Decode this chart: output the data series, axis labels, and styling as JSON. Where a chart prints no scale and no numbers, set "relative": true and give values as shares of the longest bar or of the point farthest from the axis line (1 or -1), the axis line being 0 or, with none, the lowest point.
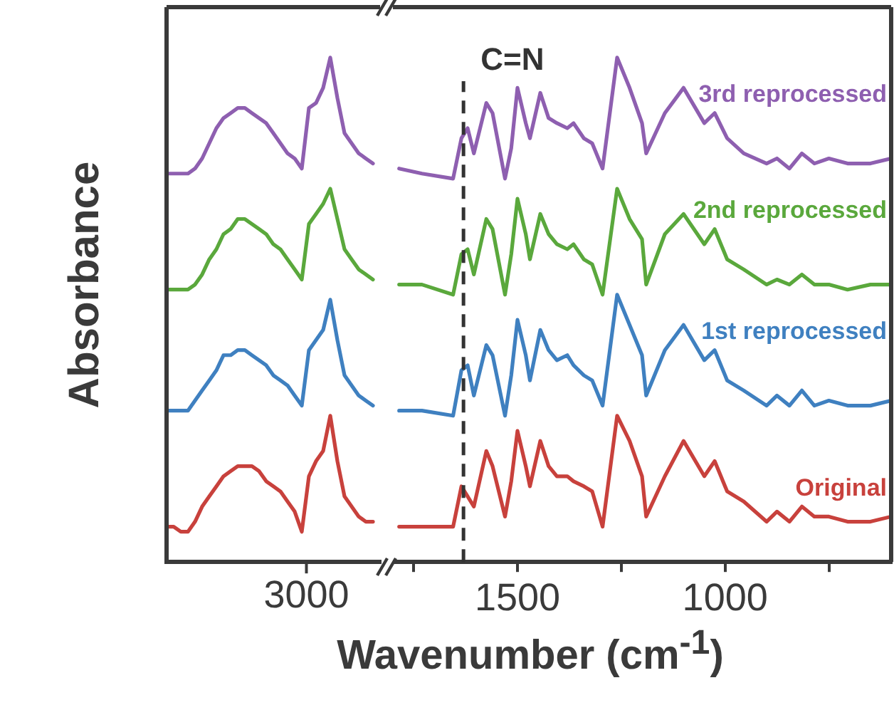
{
  "chart_data": [
    {
      "type": "line",
      "relative": true,
      "ylabel": "Absorbance",
      "xlabel": "Wavenumber (cm$^{-1}$)",
      "tick_labels": "x",
      "categories": [
        null,
        null,
        null,
        null,
        null,
        null,
        null,
        null,
        null,
        null,
        null,
        null,
        null,
        null,
        null,
        null,
        null,
        null,
        null,
        null,
        null,
        null,
        null,
        null,
        null,
        null,
        null,
        null,
        null,
        null,
        null
      ],
      "annotations": [
        "3000"
      ],
      "series": [
        {
          "color": "#8e5fb0",
          "values": [
            0.77,
            0.77,
            0.77,
            0.77,
            0.78,
            0.8,
            0.83,
            0.86,
            0.88,
            0.89,
            0.9,
            0.9,
            0.89,
            0.88,
            0.87,
            0.85,
            0.83,
            0.81,
            0.8,
            0.78,
            0.9,
            0.91,
            0.94,
            1.0,
            0.92,
            0.85,
            0.83,
            0.81,
            0.8,
            0.79,
            null
          ]
        },
        {
          "color": "#5aa83c",
          "values": [
            0.54,
            0.54,
            0.54,
            0.54,
            0.55,
            0.57,
            0.6,
            0.62,
            0.65,
            0.66,
            0.68,
            0.68,
            0.67,
            0.66,
            0.65,
            0.63,
            0.62,
            0.6,
            0.58,
            0.56,
            0.67,
            0.69,
            0.71,
            0.74,
            0.68,
            0.62,
            0.6,
            0.58,
            0.57,
            0.56,
            null
          ]
        },
        {
          "color": "#3f80c0",
          "values": [
            0.3,
            0.3,
            0.3,
            0.3,
            0.32,
            0.34,
            0.36,
            0.38,
            0.41,
            0.41,
            0.42,
            0.42,
            0.41,
            0.4,
            0.39,
            0.37,
            0.36,
            0.35,
            0.33,
            0.31,
            0.42,
            0.44,
            0.46,
            0.52,
            0.44,
            0.37,
            0.35,
            0.33,
            0.32,
            0.31,
            null
          ]
        },
        {
          "color": "#c8413c",
          "values": [
            0.07,
            0.07,
            0.06,
            0.06,
            0.08,
            0.11,
            0.13,
            0.15,
            0.17,
            0.18,
            0.19,
            0.19,
            0.19,
            0.18,
            0.16,
            0.15,
            0.14,
            0.12,
            0.1,
            0.06,
            0.17,
            0.2,
            0.22,
            0.29,
            0.2,
            0.13,
            0.11,
            0.09,
            0.08,
            0.08,
            null
          ]
        }
      ]
    },
    {
      "type": "line",
      "relative": true,
      "tick_labels": "x",
      "x": [
        1785,
        1730,
        1655,
        1635,
        1620,
        1605,
        1575,
        1560,
        1530,
        1515,
        1500,
        1480,
        1470,
        1445,
        1425,
        1405,
        1380,
        1365,
        1340,
        1320,
        1295,
        1260,
        1230,
        1200,
        1190,
        1145,
        1100,
        1050,
        1025,
        995,
        955,
        900,
        875,
        845,
        815,
        785,
        750,
        705,
        650,
        600
      ],
      "xlim": [
        1800,
        600
      ],
      "xticks": [
        {
          "value": 1750,
          "label": null
        },
        1500,
        {
          "value": 1250,
          "label": null
        },
        1000,
        {
          "value": 750,
          "label": null
        }
      ],
      "ref_lines": [
        {
          "axis": "x",
          "value": 1630,
          "label": "C=N",
          "line_style": "dashed",
          "color": "#333333"
        }
      ],
      "series": [
        {
          "name": "3rd reprocessed",
          "color": "#8e5fb0",
          "values": [
            0.78,
            0.77,
            0.76,
            0.84,
            0.86,
            0.81,
            0.91,
            0.89,
            0.76,
            0.82,
            0.94,
            0.87,
            0.84,
            0.93,
            0.88,
            0.87,
            0.86,
            0.87,
            0.84,
            0.83,
            0.78,
            1.0,
            0.94,
            0.87,
            0.81,
            0.89,
            0.94,
            0.87,
            0.89,
            0.84,
            0.81,
            0.79,
            0.8,
            0.78,
            0.81,
            0.79,
            0.8,
            0.79,
            0.79,
            0.8
          ]
        },
        {
          "name": "2nd reprocessed",
          "color": "#5aa83c",
          "values": [
            0.55,
            0.55,
            0.53,
            0.61,
            0.62,
            0.57,
            0.68,
            0.66,
            0.53,
            0.61,
            0.72,
            0.65,
            0.6,
            0.69,
            0.65,
            0.63,
            0.62,
            0.63,
            0.6,
            0.59,
            0.53,
            0.74,
            0.68,
            0.64,
            0.55,
            0.65,
            0.69,
            0.63,
            0.66,
            0.6,
            0.58,
            0.55,
            0.56,
            0.55,
            0.57,
            0.55,
            0.55,
            0.54,
            0.55,
            0.55
          ]
        },
        {
          "name": "1st reprocessed",
          "color": "#3f80c0",
          "values": [
            0.3,
            0.3,
            0.29,
            0.38,
            0.39,
            0.33,
            0.43,
            0.41,
            0.29,
            0.37,
            0.48,
            0.41,
            0.36,
            0.46,
            0.42,
            0.4,
            0.41,
            0.39,
            0.37,
            0.36,
            0.31,
            0.53,
            0.47,
            0.41,
            0.33,
            0.42,
            0.47,
            0.4,
            0.42,
            0.36,
            0.34,
            0.31,
            0.33,
            0.31,
            0.34,
            0.31,
            0.32,
            0.31,
            0.31,
            0.32
          ]
        },
        {
          "name": "Original",
          "color": "#c8413c",
          "values": [
            0.07,
            0.07,
            0.07,
            0.15,
            0.13,
            0.11,
            0.22,
            0.19,
            0.09,
            0.16,
            0.26,
            0.19,
            0.15,
            0.24,
            0.19,
            0.17,
            0.17,
            0.16,
            0.15,
            0.14,
            0.07,
            0.29,
            0.24,
            0.17,
            0.09,
            0.17,
            0.24,
            0.17,
            0.2,
            0.14,
            0.12,
            0.08,
            0.1,
            0.08,
            0.11,
            0.09,
            0.09,
            0.08,
            0.08,
            0.09
          ]
        }
      ]
    }
  ]
}
